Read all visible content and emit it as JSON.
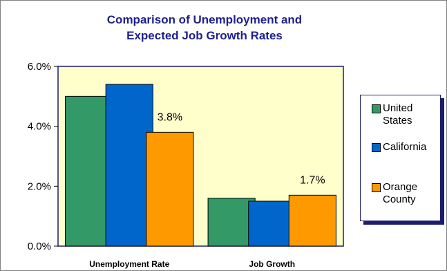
{
  "chart_data": {
    "type": "bar",
    "title_lines": [
      "Comparison of Unemployment and",
      "Expected Job Growth Rates"
    ],
    "categories": [
      "Unemployment Rate",
      "Job Growth"
    ],
    "series": [
      {
        "name": "United States",
        "values": [
          5.0,
          1.6
        ],
        "color": "#339966"
      },
      {
        "name": "California",
        "values": [
          5.4,
          1.5
        ],
        "color": "#0066cc"
      },
      {
        "name": "Orange County",
        "values": [
          3.8,
          1.7
        ],
        "color": "#ff9900"
      }
    ],
    "ylim": [
      0,
      6
    ],
    "yticks": [
      0,
      2,
      4,
      6
    ],
    "ytick_labels": [
      "0.0%",
      "2.0%",
      "4.0%",
      "6.0%"
    ],
    "data_labels": [
      {
        "series": "Orange County",
        "category": "Unemployment Rate",
        "text": "3.8%"
      },
      {
        "series": "Orange County",
        "category": "Job Growth",
        "text": "1.7%"
      }
    ],
    "legend_items": [
      {
        "lines": [
          "United",
          "States"
        ],
        "color": "#339966"
      },
      {
        "lines": [
          "California"
        ],
        "color": "#0066cc"
      },
      {
        "lines": [
          "Orange",
          "County"
        ],
        "color": "#ff9900"
      }
    ],
    "legend_position": "right",
    "plot_background": "#ffffcc",
    "grid": false
  }
}
